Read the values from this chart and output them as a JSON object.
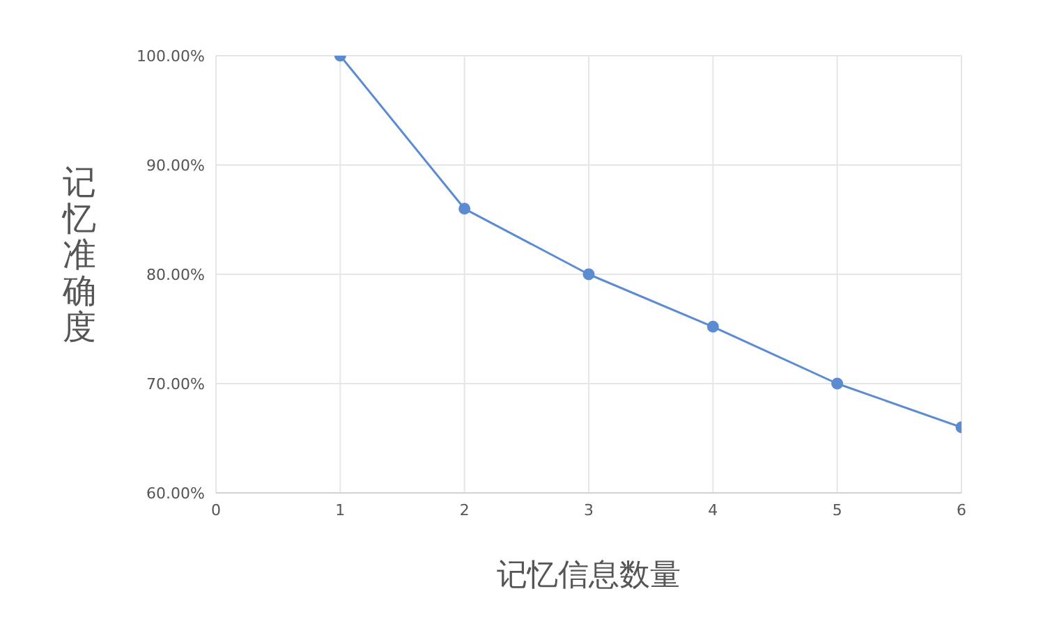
{
  "chart_data": {
    "type": "line",
    "xlabel": "记忆信息数量",
    "ylabel": "记忆准确度",
    "x": [
      1,
      2,
      3,
      4,
      5,
      6
    ],
    "series": [
      {
        "color": "#5b8bd0",
        "values": [
          100,
          86,
          80,
          75.2,
          70,
          66
        ]
      }
    ],
    "xlim": [
      0,
      6
    ],
    "xticks": [
      0,
      1,
      2,
      3,
      4,
      5,
      6
    ],
    "ylim": [
      60,
      100
    ],
    "yticks": [
      {
        "value": 60,
        "label": "60.00%"
      },
      {
        "value": 70,
        "label": "70.00%"
      },
      {
        "value": 80,
        "label": "80.00%"
      },
      {
        "value": 90,
        "label": "90.00%"
      },
      {
        "value": 100,
        "label": "100.00%"
      }
    ],
    "grid": true,
    "marker": "circle",
    "line_style": "solid",
    "legend": false
  }
}
